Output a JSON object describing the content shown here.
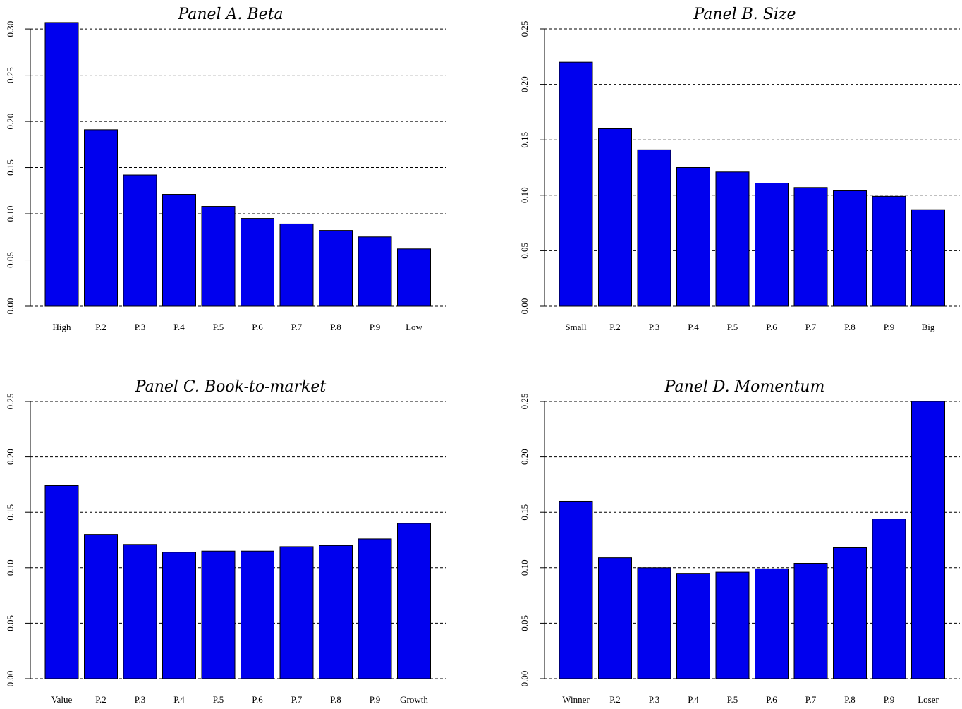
{
  "chart_data": [
    {
      "type": "bar",
      "title": "Panel A. Beta",
      "color": "#0000ee",
      "grid": true,
      "categories": [
        "High",
        "P.2",
        "P.3",
        "P.4",
        "P.5",
        "P.6",
        "P.7",
        "P.8",
        "P.9",
        "Low"
      ],
      "values": [
        0.307,
        0.191,
        0.142,
        0.121,
        0.108,
        0.095,
        0.089,
        0.082,
        0.075,
        0.062
      ],
      "ylim": [
        0,
        0.31
      ],
      "yticks": [
        {
          "value": 0,
          "label": "0.00"
        },
        {
          "value": 0.05,
          "label": "0.05"
        },
        {
          "value": 0.1,
          "label": "0.10"
        },
        {
          "value": 0.15,
          "label": "0.15"
        },
        {
          "value": 0.2,
          "label": "0.20"
        },
        {
          "value": 0.25,
          "label": "0.25"
        },
        {
          "value": 0.3,
          "label": "0.30"
        }
      ]
    },
    {
      "type": "bar",
      "title": "Panel B. Size",
      "color": "#0000ee",
      "grid": true,
      "categories": [
        "Small",
        "P.2",
        "P.3",
        "P.4",
        "P.5",
        "P.6",
        "P.7",
        "P.8",
        "P.9",
        "Big"
      ],
      "values": [
        0.22,
        0.16,
        0.141,
        0.125,
        0.121,
        0.111,
        0.107,
        0.104,
        0.099,
        0.087
      ],
      "ylim": [
        0,
        0.25
      ],
      "yticks": [
        {
          "value": 0,
          "label": "0.00"
        },
        {
          "value": 0.05,
          "label": "0.05"
        },
        {
          "value": 0.1,
          "label": "0.10"
        },
        {
          "value": 0.15,
          "label": "0.15"
        },
        {
          "value": 0.2,
          "label": "0.20"
        },
        {
          "value": 0.25,
          "label": "0.25"
        }
      ]
    },
    {
      "type": "bar",
      "title": "Panel C. Book-to-market",
      "color": "#0000ee",
      "grid": true,
      "categories": [
        "Value",
        "P.2",
        "P.3",
        "P.4",
        "P.5",
        "P.6",
        "P.7",
        "P.8",
        "P.9",
        "Growth"
      ],
      "values": [
        0.174,
        0.13,
        0.121,
        0.114,
        0.115,
        0.115,
        0.119,
        0.12,
        0.126,
        0.14
      ],
      "ylim": [
        0,
        0.25
      ],
      "yticks": [
        {
          "value": 0,
          "label": "0.00"
        },
        {
          "value": 0.05,
          "label": "0.05"
        },
        {
          "value": 0.1,
          "label": "0.10"
        },
        {
          "value": 0.15,
          "label": "0.15"
        },
        {
          "value": 0.2,
          "label": "0.20"
        },
        {
          "value": 0.25,
          "label": "0.25"
        }
      ]
    },
    {
      "type": "bar",
      "title": "Panel D. Momentum",
      "color": "#0000ee",
      "grid": true,
      "categories": [
        "Winner",
        "P.2",
        "P.3",
        "P.4",
        "P.5",
        "P.6",
        "P.7",
        "P.8",
        "P.9",
        "Loser"
      ],
      "values": [
        0.16,
        0.109,
        0.1,
        0.095,
        0.096,
        0.099,
        0.104,
        0.118,
        0.144,
        0.25
      ],
      "ylim": [
        0,
        0.25
      ],
      "yticks": [
        {
          "value": 0,
          "label": "0.00"
        },
        {
          "value": 0.05,
          "label": "0.05"
        },
        {
          "value": 0.1,
          "label": "0.10"
        },
        {
          "value": 0.15,
          "label": "0.15"
        },
        {
          "value": 0.2,
          "label": "0.20"
        },
        {
          "value": 0.25,
          "label": "0.25"
        }
      ]
    }
  ]
}
